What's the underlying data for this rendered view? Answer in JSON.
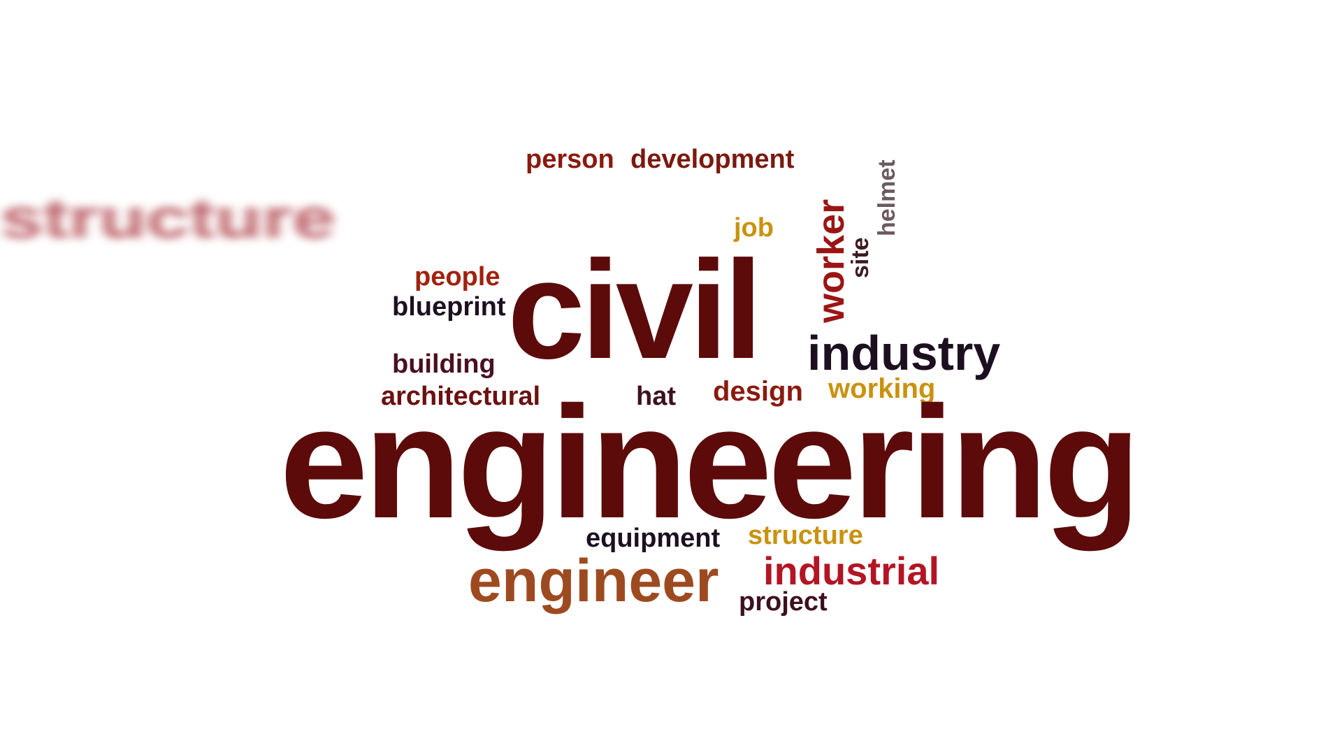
{
  "word_cloud": {
    "words": [
      {
        "text": "structure",
        "color": "#b0454d",
        "motion_blurred": true
      },
      {
        "text": "person",
        "color": "#8b1a0e"
      },
      {
        "text": "development",
        "color": "#7a1a0e"
      },
      {
        "text": "helmet",
        "color": "#6b5a60"
      },
      {
        "text": "worker",
        "color": "#9b1515"
      },
      {
        "text": "site",
        "color": "#3d1a22"
      },
      {
        "text": "job",
        "color": "#c9920f"
      },
      {
        "text": "people",
        "color": "#a0220d"
      },
      {
        "text": "blueprint",
        "color": "#1c1020"
      },
      {
        "text": "civil",
        "color": "#5c0a0a"
      },
      {
        "text": "industry",
        "color": "#1c1020"
      },
      {
        "text": "building",
        "color": "#4a1020"
      },
      {
        "text": "architectural",
        "color": "#6b1010"
      },
      {
        "text": "hat",
        "color": "#3d1020"
      },
      {
        "text": "design",
        "color": "#8b1a0e"
      },
      {
        "text": "working",
        "color": "#c9920f"
      },
      {
        "text": "engineering",
        "color": "#5c0a0a"
      },
      {
        "text": "equipment",
        "color": "#1c1020"
      },
      {
        "text": "structure",
        "color": "#c9920f"
      },
      {
        "text": "engineer",
        "color": "#9e4a20"
      },
      {
        "text": "industrial",
        "color": "#b31525"
      },
      {
        "text": "project",
        "color": "#3d1020"
      }
    ]
  }
}
